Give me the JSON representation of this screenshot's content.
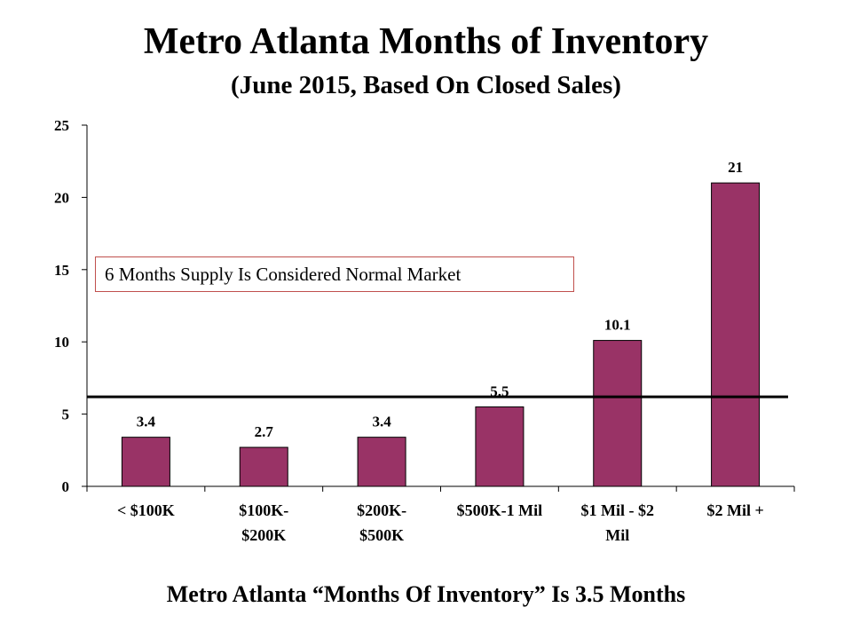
{
  "chart_data": {
    "type": "bar",
    "title": "Metro Atlanta Months of Inventory",
    "subtitle": "(June 2015, Based On Closed Sales)",
    "categories": [
      [
        "< $100K"
      ],
      [
        "$100K-",
        "$200K"
      ],
      [
        "$200K-",
        "$500K"
      ],
      [
        "$500K-1 Mil"
      ],
      [
        "$1 Mil - $2",
        "Mil"
      ],
      [
        "$2 Mil +"
      ]
    ],
    "values": [
      3.4,
      2.7,
      3.4,
      5.5,
      10.1,
      21
    ],
    "value_labels": [
      "3.4",
      "2.7",
      "3.4",
      "5.5",
      "10.1",
      "21"
    ],
    "ylim": [
      0,
      25
    ],
    "yticks": [
      0,
      5,
      10,
      15,
      20,
      25
    ],
    "reference_line": 6.2,
    "annotation": "6 Months Supply Is Considered Normal Market",
    "bar_color": "#993366",
    "grid": false,
    "legend": "none"
  },
  "footer": "Metro Atlanta “Months Of Inventory” Is 3.5 Months"
}
